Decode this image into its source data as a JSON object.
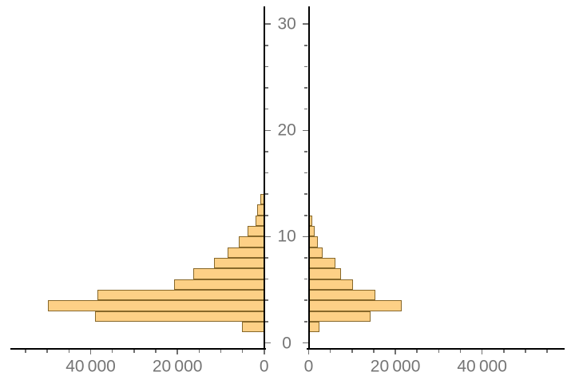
{
  "chart_data": {
    "type": "bar",
    "subtype": "population_pyramid_back_to_back_histogram",
    "orientation": "horizontal",
    "title": "",
    "xlabel": "",
    "ylabel": "",
    "grid": false,
    "legend": "none",
    "bin_size": 1,
    "age_bins": [
      0,
      1,
      2,
      3,
      4,
      5,
      6,
      7,
      8,
      9,
      10,
      11,
      12,
      13,
      14
    ],
    "series": [
      {
        "name": "left_panel",
        "side": "left",
        "values": [
          0,
          5200,
          39000,
          50000,
          38600,
          20800,
          16500,
          11700,
          8500,
          6000,
          4000,
          2100,
          1650,
          900,
          300
        ]
      },
      {
        "name": "right_panel",
        "side": "right",
        "values": [
          0,
          2600,
          14300,
          21500,
          15400,
          10300,
          7500,
          6350,
          3400,
          2300,
          1400,
          1000,
          450,
          350,
          0
        ]
      }
    ],
    "x_axis": {
      "range_per_side": [
        0,
        58000
      ],
      "minor_tick_step": 5000,
      "major_tick_step": 20000,
      "major_ticks": [
        {
          "value": 0,
          "label": "0"
        },
        {
          "value": 20000,
          "label": "20 000"
        },
        {
          "value": 40000,
          "label": "40 000"
        }
      ]
    },
    "y_axis": {
      "range": [
        0,
        31.5
      ],
      "minor_tick_step": 2,
      "major_tick_step": 10,
      "major_ticks": [
        {
          "value": 0,
          "label": "0"
        },
        {
          "value": 10,
          "label": "10"
        },
        {
          "value": 20,
          "label": "20"
        },
        {
          "value": 30,
          "label": "30"
        }
      ]
    },
    "colors": {
      "bar_fill": "#FDD086",
      "bar_edge": "#87682A",
      "axis": "#000000",
      "tick": "#6F6F6F",
      "tick_label": "#757575",
      "background": "#FFFFFF"
    }
  }
}
